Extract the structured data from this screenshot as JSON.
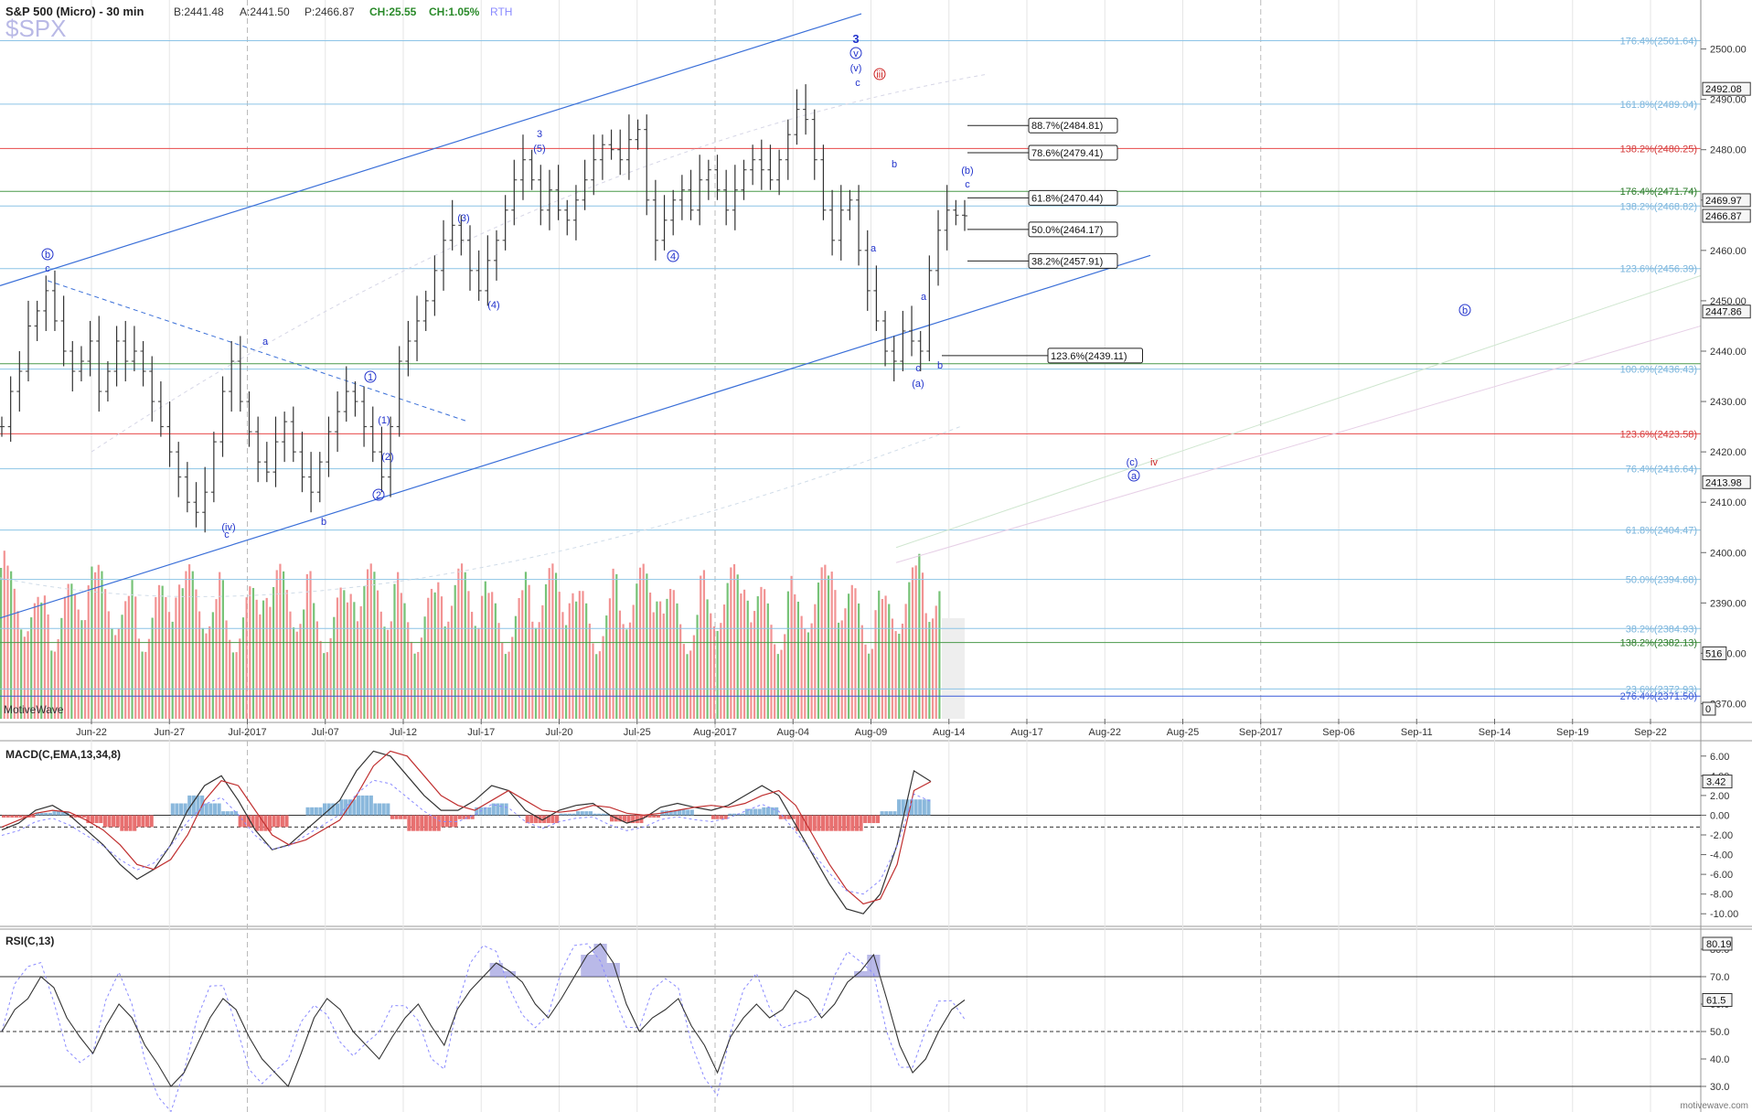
{
  "header": {
    "title": "S&P 500 (Micro) - 30 min",
    "bid": "B:2441.48",
    "ask": "A:2441.50",
    "price": "P:2466.87",
    "change_points": "CH:25.55",
    "change_pct": "CH:1.05%",
    "session": "RTH",
    "symbol_watermark": "$SPX"
  },
  "branding": {
    "app": "MotiveWave",
    "site": "motivewave.com"
  },
  "colors": {
    "fib_blue": "#8cc4e6",
    "fib_red": "#e84a4a",
    "fib_green": "#4a9a4a",
    "trend_blue": "#3a6fd8",
    "volume_up": "#5fb85f",
    "volume_down": "#f08080",
    "wave_blue": "#2233cc",
    "wave_red": "#cc2222"
  },
  "chart_data": [
    {
      "type": "line",
      "panel": "price",
      "xaxis_ticks": [
        "Jun-22",
        "Jun-27",
        "Jul-2017",
        "Jul-07",
        "Jul-12",
        "Jul-17",
        "Jul-20",
        "Jul-25",
        "Aug-2017",
        "Aug-04",
        "Aug-09",
        "Aug-14",
        "Aug-17",
        "Aug-22",
        "Aug-25",
        "Sep-2017",
        "Sep-06",
        "Sep-11",
        "Sep-14",
        "Sep-19",
        "Sep-22"
      ],
      "yaxis_ticks": [
        2370,
        2380,
        2390,
        2400,
        2410,
        2420,
        2430,
        2440,
        2450,
        2460,
        2470,
        2480,
        2490,
        2500
      ],
      "ylim": [
        2367,
        2509
      ],
      "series": [
        {
          "values": [
            2425,
            2432,
            2436,
            2445,
            2448,
            2452,
            2446,
            2440,
            2436,
            2438,
            2442,
            2432,
            2436,
            2442,
            2438,
            2440,
            2436,
            2430,
            2425,
            2420,
            2415,
            2410,
            2408,
            2412,
            2422,
            2432,
            2438,
            2430,
            2424,
            2418,
            2416,
            2422,
            2426,
            2420,
            2415,
            2412,
            2418,
            2424,
            2428,
            2432,
            2430,
            2425,
            2420,
            2415,
            2425,
            2438,
            2442,
            2446,
            2450,
            2456,
            2462,
            2465,
            2462,
            2456,
            2452,
            2458,
            2462,
            2468,
            2474,
            2478,
            2474,
            2468,
            2472,
            2468,
            2466,
            2470,
            2474,
            2478,
            2481,
            2480,
            2478,
            2482,
            2484,
            2470,
            2462,
            2466,
            2470,
            2472,
            2468,
            2474,
            2476,
            2472,
            2468,
            2472,
            2476,
            2478,
            2476,
            2474,
            2478,
            2483,
            2488,
            2486,
            2478,
            2468,
            2462,
            2468,
            2470,
            2460,
            2452,
            2446,
            2440,
            2438,
            2444,
            2442,
            2440,
            2456,
            2464,
            2468,
            2467,
            2466.87
          ]
        }
      ],
      "ohlc_last": {
        "price": 2466.87
      },
      "fib_levels": [
        {
          "label": "176.4%(2501.64)",
          "value": 2501.64,
          "color": "blue"
        },
        {
          "label": "161.8%(2489.04)",
          "value": 2489.04,
          "color": "blue"
        },
        {
          "label": "138.2%(2480.25)",
          "value": 2480.25,
          "color": "red"
        },
        {
          "label": "176.4%(2471.74)",
          "value": 2471.74,
          "color": "green"
        },
        {
          "label": "138.2%(2468.82)",
          "value": 2468.82,
          "color": "blue"
        },
        {
          "label": "123.6%(2456.39)",
          "value": 2456.39,
          "color": "blue"
        },
        {
          "label": "100.0%(2436.43)",
          "value": 2436.43,
          "color": "blue"
        },
        {
          "label": "123.6%(2423.58)",
          "value": 2423.58,
          "color": "red"
        },
        {
          "label": "76.4%(2416.64)",
          "value": 2416.64,
          "color": "blue"
        },
        {
          "label": "61.8%(2404.47)",
          "value": 2404.47,
          "color": "blue"
        },
        {
          "label": "50.0%(2394.68)",
          "value": 2394.68,
          "color": "blue"
        },
        {
          "label": "38.2%(2384.93)",
          "value": 2384.93,
          "color": "blue"
        },
        {
          "label": "138.2%(2382.13)",
          "value": 2382.13,
          "color": "green"
        },
        {
          "label": "23.6%(2372.93)",
          "value": 2372.93,
          "color": "blue"
        },
        {
          "label": "276.4%(2371.50)",
          "value": 2371.5,
          "color": "navy"
        }
      ],
      "fib_boxes": [
        {
          "label": "88.7%(2484.81)",
          "value": 2484.81
        },
        {
          "label": "78.6%(2479.41)",
          "value": 2479.41
        },
        {
          "label": "61.8%(2470.44)",
          "value": 2470.44
        },
        {
          "label": "50.0%(2464.17)",
          "value": 2464.17
        },
        {
          "label": "38.2%(2457.91)",
          "value": 2457.91
        },
        {
          "label": "123.6%(2439.11)",
          "value": 2439.11
        }
      ],
      "price_tags": [
        {
          "label": "2492.08",
          "value": 2492.08
        },
        {
          "label": "2469.97",
          "value": 2469.97
        },
        {
          "label": "2466.87",
          "value": 2466.87
        },
        {
          "label": "2447.86",
          "value": 2447.86
        },
        {
          "label": "2413.98",
          "value": 2413.98
        },
        {
          "label": "516",
          "value": 2380
        },
        {
          "label": "0",
          "value": 2369
        }
      ],
      "wave_labels": [
        "3",
        "v",
        "(v)",
        "c",
        "iii",
        "b",
        "c",
        "(b)",
        "a",
        "a",
        "b",
        "c",
        "(a)",
        "b",
        "c",
        "(iv)",
        "3",
        "(5)",
        "(3)",
        "(4)",
        "4",
        "1",
        "(1)",
        "(2)",
        "2",
        "a",
        "b",
        "b",
        "c",
        "(c)",
        "iv",
        "a"
      ]
    },
    {
      "type": "line",
      "panel": "macd",
      "title": "MACD(C,EMA,13,34,8)",
      "yaxis_ticks": [
        "6.00",
        "4.00",
        "2.00",
        "0.00",
        "-2.00",
        "-4.00",
        "-6.00",
        "-8.00",
        "-10.00"
      ],
      "ylim": [
        -11,
        7
      ],
      "current_value": "3.42",
      "signal_line": [
        -1.2,
        -0.5,
        0.2,
        0.5,
        0.3,
        -0.5,
        -1.5,
        -3.0,
        -5.0,
        -5.5,
        -4.5,
        -2.0,
        1.5,
        3.5,
        3.0,
        0.5,
        -2.0,
        -3.0,
        -2.5,
        -1.5,
        -0.5,
        2.0,
        5.0,
        6.5,
        6.0,
        4.0,
        2.0,
        1.0,
        0.5,
        1.5,
        2.5,
        1.5,
        0.5,
        0.3,
        0.5,
        1.0,
        0.8,
        0.2,
        0.0,
        0.2,
        0.5,
        0.8,
        1.0,
        0.8,
        1.2,
        2.0,
        2.5,
        1.0,
        -2.0,
        -5.0,
        -7.5,
        -9.0,
        -8.5,
        -5.0,
        2.5,
        3.42
      ],
      "macd_line": [
        -1.5,
        -0.8,
        0.5,
        1.0,
        0.0,
        -1.5,
        -3.0,
        -5.0,
        -6.5,
        -5.5,
        -3.0,
        0.5,
        3.0,
        4.0,
        1.5,
        -1.5,
        -3.5,
        -3.0,
        -1.5,
        0.0,
        1.5,
        4.5,
        6.5,
        6.0,
        4.0,
        2.0,
        0.5,
        0.5,
        1.5,
        3.0,
        2.5,
        0.5,
        -0.5,
        0.5,
        1.0,
        1.2,
        0.0,
        -0.8,
        -0.3,
        0.8,
        1.2,
        0.8,
        0.5,
        1.0,
        2.0,
        3.0,
        2.0,
        -1.0,
        -4.0,
        -7.0,
        -9.5,
        -10.0,
        -8.0,
        -3.0,
        4.5,
        3.42
      ]
    },
    {
      "type": "line",
      "panel": "rsi",
      "title": "RSI(C,13)",
      "yaxis_ticks": [
        "80.0",
        "70.0",
        "60.0",
        "50.0",
        "40.0",
        "30.0"
      ],
      "ylim": [
        22,
        86
      ],
      "current_value": "61.5",
      "upper_value": "80.19",
      "levels": [
        70,
        50,
        30
      ],
      "values": [
        50,
        58,
        62,
        70,
        66,
        55,
        48,
        42,
        52,
        60,
        55,
        45,
        38,
        30,
        35,
        45,
        55,
        62,
        58,
        48,
        40,
        35,
        30,
        42,
        55,
        62,
        58,
        50,
        45,
        40,
        48,
        55,
        60,
        52,
        45,
        58,
        65,
        70,
        75,
        72,
        68,
        60,
        55,
        62,
        70,
        78,
        82,
        75,
        60,
        50,
        55,
        58,
        62,
        52,
        45,
        35,
        48,
        55,
        60,
        55,
        58,
        65,
        62,
        55,
        60,
        68,
        72,
        78,
        62,
        45,
        35,
        40,
        50,
        58,
        61.5
      ]
    }
  ]
}
